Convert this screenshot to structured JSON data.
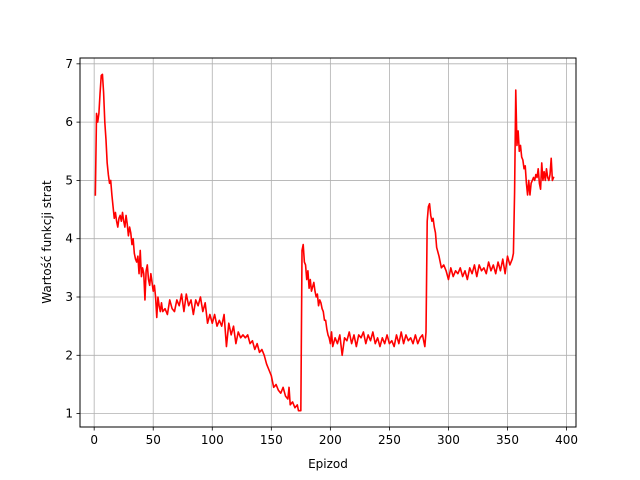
{
  "chart_data": {
    "type": "line",
    "title": "",
    "xlabel": "Epizod",
    "ylabel": "Wartość funkcji strat",
    "xlim": [
      -12,
      408
    ],
    "ylim": [
      0.77,
      7.1
    ],
    "xticks": [
      0,
      50,
      100,
      150,
      200,
      250,
      300,
      350,
      400
    ],
    "yticks": [
      1,
      2,
      3,
      4,
      5,
      6,
      7
    ],
    "grid": true,
    "line_color": "#ff0000",
    "series": [
      {
        "points": [
          [
            1,
            4.75
          ],
          [
            2,
            6.15
          ],
          [
            3,
            6.0
          ],
          [
            4,
            6.15
          ],
          [
            5,
            6.5
          ],
          [
            6,
            6.8
          ],
          [
            7,
            6.82
          ],
          [
            8,
            6.5
          ],
          [
            9,
            6.0
          ],
          [
            10,
            5.7
          ],
          [
            11,
            5.3
          ],
          [
            12,
            5.1
          ],
          [
            13,
            4.95
          ],
          [
            14,
            5.0
          ],
          [
            15,
            4.75
          ],
          [
            16,
            4.55
          ],
          [
            17,
            4.35
          ],
          [
            18,
            4.45
          ],
          [
            19,
            4.3
          ],
          [
            20,
            4.2
          ],
          [
            21,
            4.35
          ],
          [
            22,
            4.4
          ],
          [
            23,
            4.3
          ],
          [
            24,
            4.45
          ],
          [
            25,
            4.3
          ],
          [
            26,
            4.2
          ],
          [
            27,
            4.4
          ],
          [
            28,
            4.25
          ],
          [
            29,
            4.05
          ],
          [
            30,
            4.2
          ],
          [
            31,
            4.1
          ],
          [
            32,
            3.9
          ],
          [
            33,
            4.0
          ],
          [
            34,
            3.75
          ],
          [
            35,
            3.65
          ],
          [
            36,
            3.6
          ],
          [
            37,
            3.7
          ],
          [
            38,
            3.4
          ],
          [
            39,
            3.8
          ],
          [
            40,
            3.35
          ],
          [
            41,
            3.5
          ],
          [
            42,
            3.4
          ],
          [
            43,
            2.95
          ],
          [
            44,
            3.45
          ],
          [
            45,
            3.55
          ],
          [
            46,
            3.3
          ],
          [
            47,
            3.2
          ],
          [
            48,
            3.4
          ],
          [
            49,
            3.25
          ],
          [
            50,
            3.1
          ],
          [
            51,
            3.2
          ],
          [
            52,
            3.0
          ],
          [
            53,
            2.65
          ],
          [
            54,
            3.0
          ],
          [
            55,
            2.85
          ],
          [
            56,
            2.75
          ],
          [
            57,
            2.9
          ],
          [
            58,
            2.75
          ],
          [
            60,
            2.8
          ],
          [
            62,
            2.7
          ],
          [
            64,
            2.95
          ],
          [
            66,
            2.8
          ],
          [
            68,
            2.75
          ],
          [
            70,
            2.95
          ],
          [
            72,
            2.85
          ],
          [
            74,
            3.05
          ],
          [
            76,
            2.75
          ],
          [
            78,
            3.05
          ],
          [
            80,
            2.85
          ],
          [
            82,
            2.95
          ],
          [
            84,
            2.7
          ],
          [
            86,
            2.95
          ],
          [
            88,
            2.85
          ],
          [
            90,
            3.0
          ],
          [
            92,
            2.75
          ],
          [
            94,
            2.9
          ],
          [
            96,
            2.55
          ],
          [
            98,
            2.7
          ],
          [
            100,
            2.55
          ],
          [
            102,
            2.7
          ],
          [
            104,
            2.5
          ],
          [
            106,
            2.6
          ],
          [
            108,
            2.5
          ],
          [
            110,
            2.7
          ],
          [
            112,
            2.15
          ],
          [
            114,
            2.55
          ],
          [
            116,
            2.35
          ],
          [
            118,
            2.5
          ],
          [
            120,
            2.2
          ],
          [
            122,
            2.4
          ],
          [
            124,
            2.3
          ],
          [
            126,
            2.35
          ],
          [
            128,
            2.3
          ],
          [
            130,
            2.35
          ],
          [
            132,
            2.2
          ],
          [
            134,
            2.25
          ],
          [
            136,
            2.1
          ],
          [
            138,
            2.2
          ],
          [
            140,
            2.05
          ],
          [
            142,
            2.1
          ],
          [
            144,
            2.0
          ],
          [
            146,
            1.85
          ],
          [
            148,
            1.75
          ],
          [
            150,
            1.65
          ],
          [
            152,
            1.45
          ],
          [
            154,
            1.5
          ],
          [
            156,
            1.4
          ],
          [
            158,
            1.35
          ],
          [
            160,
            1.45
          ],
          [
            162,
            1.3
          ],
          [
            164,
            1.25
          ],
          [
            165,
            1.45
          ],
          [
            166,
            1.15
          ],
          [
            168,
            1.2
          ],
          [
            170,
            1.1
          ],
          [
            172,
            1.15
          ],
          [
            173,
            1.05
          ],
          [
            175,
            1.05
          ],
          [
            176,
            3.8
          ],
          [
            177,
            3.9
          ],
          [
            178,
            3.6
          ],
          [
            179,
            3.55
          ],
          [
            180,
            3.3
          ],
          [
            181,
            3.45
          ],
          [
            182,
            3.15
          ],
          [
            183,
            3.3
          ],
          [
            184,
            3.1
          ],
          [
            186,
            3.25
          ],
          [
            187,
            3.1
          ],
          [
            188,
            3.0
          ],
          [
            189,
            3.05
          ],
          [
            190,
            2.85
          ],
          [
            191,
            2.95
          ],
          [
            192,
            2.9
          ],
          [
            193,
            2.8
          ],
          [
            194,
            2.75
          ],
          [
            195,
            2.6
          ],
          [
            196,
            2.6
          ],
          [
            197,
            2.45
          ],
          [
            198,
            2.35
          ],
          [
            199,
            2.3
          ],
          [
            200,
            2.2
          ],
          [
            201,
            2.4
          ],
          [
            202,
            2.15
          ],
          [
            204,
            2.3
          ],
          [
            206,
            2.2
          ],
          [
            208,
            2.35
          ],
          [
            210,
            2.0
          ],
          [
            212,
            2.3
          ],
          [
            214,
            2.25
          ],
          [
            216,
            2.4
          ],
          [
            218,
            2.2
          ],
          [
            220,
            2.35
          ],
          [
            222,
            2.15
          ],
          [
            224,
            2.35
          ],
          [
            226,
            2.3
          ],
          [
            228,
            2.4
          ],
          [
            230,
            2.2
          ],
          [
            232,
            2.35
          ],
          [
            234,
            2.25
          ],
          [
            236,
            2.4
          ],
          [
            238,
            2.2
          ],
          [
            240,
            2.3
          ],
          [
            242,
            2.15
          ],
          [
            244,
            2.3
          ],
          [
            246,
            2.2
          ],
          [
            248,
            2.35
          ],
          [
            250,
            2.2
          ],
          [
            252,
            2.25
          ],
          [
            254,
            2.15
          ],
          [
            256,
            2.35
          ],
          [
            258,
            2.2
          ],
          [
            260,
            2.4
          ],
          [
            262,
            2.2
          ],
          [
            264,
            2.35
          ],
          [
            266,
            2.25
          ],
          [
            268,
            2.3
          ],
          [
            270,
            2.2
          ],
          [
            272,
            2.35
          ],
          [
            274,
            2.2
          ],
          [
            276,
            2.3
          ],
          [
            278,
            2.35
          ],
          [
            279,
            2.25
          ],
          [
            280,
            2.15
          ],
          [
            281,
            2.4
          ],
          [
            282,
            4.3
          ],
          [
            283,
            4.55
          ],
          [
            284,
            4.6
          ],
          [
            285,
            4.4
          ],
          [
            286,
            4.3
          ],
          [
            287,
            4.35
          ],
          [
            288,
            4.2
          ],
          [
            289,
            4.1
          ],
          [
            290,
            3.85
          ],
          [
            292,
            3.7
          ],
          [
            294,
            3.5
          ],
          [
            296,
            3.55
          ],
          [
            298,
            3.45
          ],
          [
            300,
            3.3
          ],
          [
            302,
            3.5
          ],
          [
            304,
            3.35
          ],
          [
            306,
            3.45
          ],
          [
            308,
            3.4
          ],
          [
            310,
            3.5
          ],
          [
            312,
            3.35
          ],
          [
            314,
            3.45
          ],
          [
            316,
            3.3
          ],
          [
            318,
            3.5
          ],
          [
            320,
            3.4
          ],
          [
            322,
            3.55
          ],
          [
            324,
            3.35
          ],
          [
            326,
            3.55
          ],
          [
            328,
            3.45
          ],
          [
            330,
            3.5
          ],
          [
            332,
            3.4
          ],
          [
            334,
            3.6
          ],
          [
            336,
            3.45
          ],
          [
            338,
            3.55
          ],
          [
            340,
            3.4
          ],
          [
            342,
            3.6
          ],
          [
            344,
            3.45
          ],
          [
            346,
            3.65
          ],
          [
            348,
            3.4
          ],
          [
            350,
            3.7
          ],
          [
            352,
            3.55
          ],
          [
            354,
            3.65
          ],
          [
            355,
            3.75
          ],
          [
            356,
            4.8
          ],
          [
            357,
            6.55
          ],
          [
            358,
            5.6
          ],
          [
            359,
            5.85
          ],
          [
            360,
            5.5
          ],
          [
            361,
            5.6
          ],
          [
            362,
            5.4
          ],
          [
            363,
            5.35
          ],
          [
            364,
            5.2
          ],
          [
            365,
            5.25
          ],
          [
            366,
            4.95
          ],
          [
            367,
            4.75
          ],
          [
            368,
            5.0
          ],
          [
            369,
            4.75
          ],
          [
            370,
            4.95
          ],
          [
            371,
            5.0
          ],
          [
            372,
            5.05
          ],
          [
            373,
            5.0
          ],
          [
            374,
            5.1
          ],
          [
            375,
            5.05
          ],
          [
            376,
            5.2
          ],
          [
            377,
            4.95
          ],
          [
            378,
            4.85
          ],
          [
            379,
            5.3
          ],
          [
            380,
            5.0
          ],
          [
            381,
            5.15
          ],
          [
            382,
            5.0
          ],
          [
            383,
            5.2
          ],
          [
            384,
            5.05
          ],
          [
            385,
            5.0
          ],
          [
            386,
            5.1
          ],
          [
            387,
            5.38
          ],
          [
            388,
            5.0
          ],
          [
            389,
            5.05
          ]
        ]
      }
    ]
  }
}
